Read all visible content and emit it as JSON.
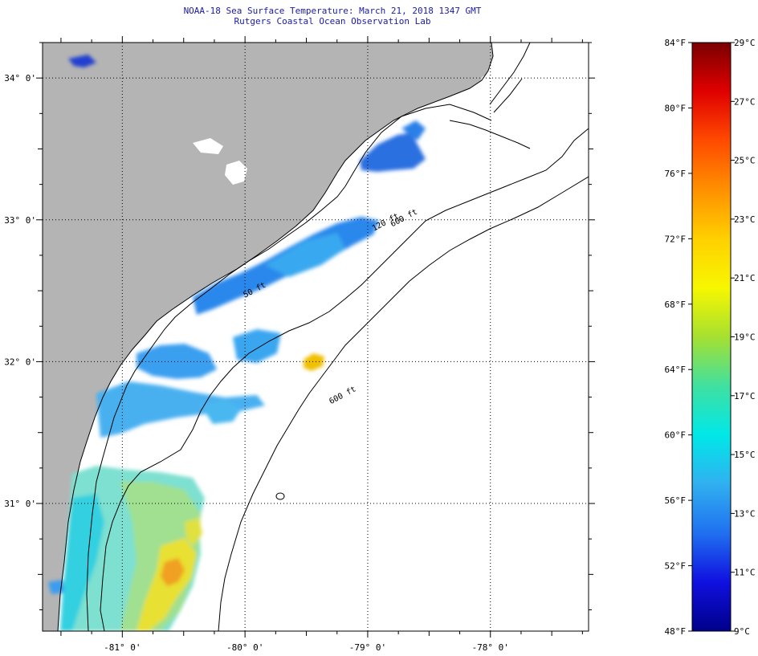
{
  "header": {
    "title": "NOAA-18 Sea Surface Temperature:  March 21, 2018 1347 GMT",
    "subtitle": "Rutgers Coastal Ocean Observation Lab"
  },
  "map": {
    "lon_range": [
      -81.65,
      -77.2
    ],
    "lat_range": [
      30.1,
      34.25
    ],
    "lon_labels": [
      {
        "lon": -81,
        "text": "-81° 0'"
      },
      {
        "lon": -80,
        "text": "-80° 0'"
      },
      {
        "lon": -79,
        "text": "-79° 0'"
      },
      {
        "lon": -78,
        "text": "-78° 0'"
      }
    ],
    "lat_labels": [
      {
        "lat": 34,
        "text": "34° 0'"
      },
      {
        "lat": 33,
        "text": "33° 0'"
      },
      {
        "lat": 32,
        "text": "32° 0'"
      },
      {
        "lat": 31,
        "text": "31° 0'"
      }
    ],
    "isobath_labels": [
      {
        "text": "50 ft",
        "lon": -80.0,
        "lat": 32.45
      },
      {
        "text": "120 ft",
        "lon": -78.95,
        "lat": 32.92
      },
      {
        "text": "600 ft",
        "lon": -78.8,
        "lat": 32.95
      },
      {
        "text": "600 ft",
        "lon": -79.3,
        "lat": 31.7
      }
    ],
    "land_color": "#b4b4b4",
    "grid": "dotted"
  },
  "colorbar": {
    "f_labels": [
      "84°F",
      "80°F",
      "76°F",
      "72°F",
      "68°F",
      "64°F",
      "60°F",
      "56°F",
      "52°F",
      "48°F"
    ],
    "c_labels": [
      "29°C",
      "27°C",
      "25°C",
      "23°C",
      "21°C",
      "19°C",
      "17°C",
      "15°C",
      "13°C",
      "11°C",
      "9°C"
    ],
    "gradient": [
      "#7a0000",
      "#e00000",
      "#ff4a00",
      "#ff9000",
      "#ffd000",
      "#f7f700",
      "#a6e030",
      "#40e0a0",
      "#00e8e8",
      "#30b0f0",
      "#2070f0",
      "#1010e0",
      "#00008a"
    ]
  }
}
